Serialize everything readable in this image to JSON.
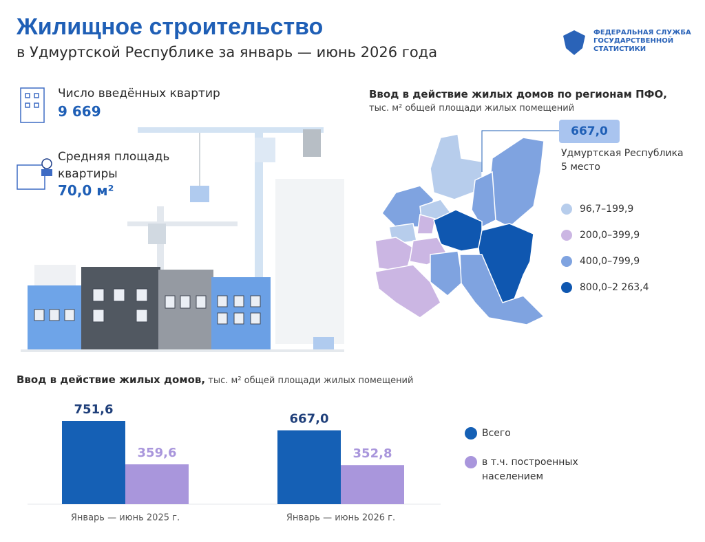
{
  "header": {
    "title": "Жилищное строительство",
    "subtitle": "в Удмуртской Республике за январь — июнь 2026 года",
    "logo": [
      "ФЕДЕРАЛЬНАЯ СЛУЖБА",
      "ГОСУДАРСТВЕННОЙ",
      "СТАТИСТИКИ"
    ]
  },
  "stats": [
    {
      "label": "Число введённых квартир",
      "value": "9 669"
    },
    {
      "label": "Средняя площадь квартиры",
      "value": "70,0 м²"
    }
  ],
  "map": {
    "title": "Ввод в действие жилых домов по регионам ПФО,",
    "subtitle": "тыс. м² общей площади жилых помещений",
    "callout": {
      "value": "667,0",
      "region": "Удмуртская Республика",
      "rank": "5 место"
    },
    "legend": [
      {
        "label": "96,7–199,9",
        "color": "#b7cdec"
      },
      {
        "label": "200,0–399,9",
        "color": "#cbb6e3"
      },
      {
        "label": "400,0–799,9",
        "color": "#7fa3e0"
      },
      {
        "label": "800,0–2 263,4",
        "color": "#0f57b0"
      }
    ]
  },
  "chart_data": {
    "type": "bar",
    "title": "Ввод в действие жилых домов,",
    "subtitle": "тыс. м² общей площади жилых помещений",
    "categories": [
      "Январь — июнь 2025 г.",
      "Январь — июнь 2026 г."
    ],
    "series": [
      {
        "name": "Всего",
        "color": "#1560b5",
        "values": [
          751.6,
          667.0
        ],
        "value_labels": [
          "751,6",
          "667,0"
        ]
      },
      {
        "name": "в т.ч. построенных населением",
        "color": "#a996dc",
        "values": [
          359.6,
          352.8
        ],
        "value_labels": [
          "359,6",
          "352,8"
        ]
      }
    ]
  }
}
